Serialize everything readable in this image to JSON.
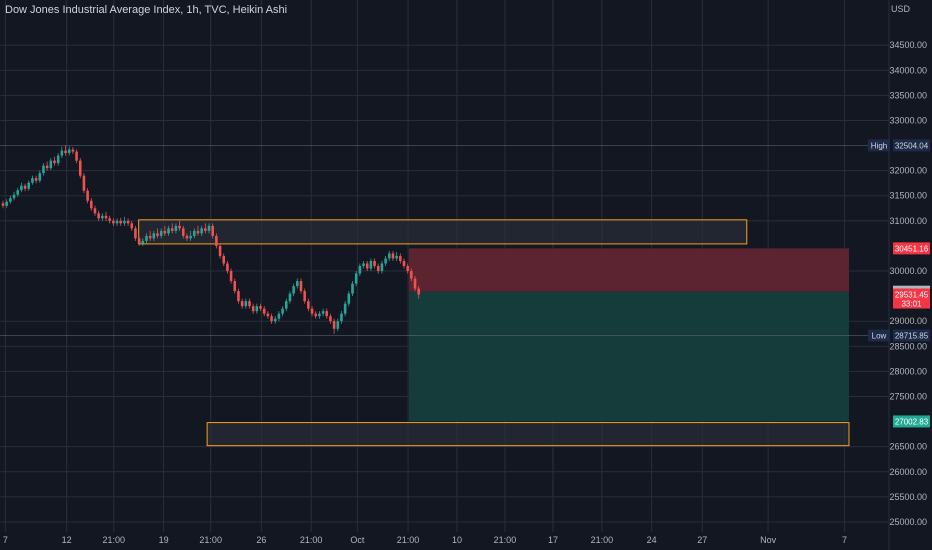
{
  "header": {
    "title": "Dow Jones Industrial Average Index, 1h, TVC, Heikin Ashi",
    "currency": "USD"
  },
  "chart_data": {
    "type": "candlestick",
    "title": "Dow Jones Industrial Average Index, 1h, TVC, Heikin Ashi",
    "ylim": [
      24800,
      35400
    ],
    "y_ticks": [
      {
        "value": 34500,
        "label": "34500.00"
      },
      {
        "value": 34000,
        "label": "34000.00"
      },
      {
        "value": 33500,
        "label": "33500.00"
      },
      {
        "value": 33000,
        "label": "33000.00"
      },
      {
        "value": 32000,
        "label": "32000.00"
      },
      {
        "value": 31500,
        "label": "31500.00"
      },
      {
        "value": 31000,
        "label": "31000.00"
      },
      {
        "value": 30000,
        "label": "30000.00"
      },
      {
        "value": 29000,
        "label": "29000.00"
      },
      {
        "value": 28500,
        "label": "28500.00"
      },
      {
        "value": 28000,
        "label": "28000.00"
      },
      {
        "value": 27500,
        "label": "27500.00"
      },
      {
        "value": 26500,
        "label": "26500.00"
      },
      {
        "value": 26000,
        "label": "26000.00"
      },
      {
        "value": 25500,
        "label": "25500.00"
      },
      {
        "value": 25000,
        "label": "25000.00"
      }
    ],
    "x_ticks": [
      {
        "pos": 0.006,
        "label": "7"
      },
      {
        "pos": 0.075,
        "label": "12"
      },
      {
        "pos": 0.128,
        "label": "21:00"
      },
      {
        "pos": 0.184,
        "label": "19"
      },
      {
        "pos": 0.237,
        "label": "21:00"
      },
      {
        "pos": 0.294,
        "label": "26"
      },
      {
        "pos": 0.35,
        "label": "21:00"
      },
      {
        "pos": 0.402,
        "label": "Oct"
      },
      {
        "pos": 0.459,
        "label": "21:00"
      },
      {
        "pos": 0.514,
        "label": "10"
      },
      {
        "pos": 0.568,
        "label": "21:00"
      },
      {
        "pos": 0.622,
        "label": "17"
      },
      {
        "pos": 0.677,
        "label": "21:00"
      },
      {
        "pos": 0.733,
        "label": "24"
      },
      {
        "pos": 0.79,
        "label": "27"
      },
      {
        "pos": 0.864,
        "label": "Nov"
      },
      {
        "pos": 0.95,
        "label": "7"
      }
    ],
    "candles": [
      [
        31350,
        31300,
        31400,
        31250
      ],
      [
        31300,
        31380,
        31430,
        31260
      ],
      [
        31380,
        31450,
        31500,
        31340
      ],
      [
        31450,
        31520,
        31580,
        31410
      ],
      [
        31520,
        31610,
        31660,
        31480
      ],
      [
        31610,
        31700,
        31760,
        31570
      ],
      [
        31700,
        31640,
        31740,
        31590
      ],
      [
        31640,
        31760,
        31800,
        31600
      ],
      [
        31760,
        31850,
        31900,
        31720
      ],
      [
        31850,
        31800,
        31900,
        31750
      ],
      [
        31800,
        31950,
        32000,
        31760
      ],
      [
        31950,
        32100,
        32150,
        31900
      ],
      [
        32100,
        32050,
        32180,
        32000
      ],
      [
        32050,
        32200,
        32250,
        32010
      ],
      [
        32200,
        32150,
        32280,
        32100
      ],
      [
        32150,
        32300,
        32350,
        32100
      ],
      [
        32300,
        32400,
        32480,
        32250
      ],
      [
        32400,
        32350,
        32500,
        32300
      ],
      [
        32350,
        32420,
        32480,
        32300
      ],
      [
        32420,
        32380,
        32470,
        32330
      ],
      [
        32380,
        32200,
        32420,
        32150
      ],
      [
        32200,
        31900,
        32250,
        31850
      ],
      [
        31900,
        31600,
        31950,
        31550
      ],
      [
        31600,
        31400,
        31650,
        31350
      ],
      [
        31400,
        31250,
        31450,
        31200
      ],
      [
        31250,
        31150,
        31300,
        31100
      ],
      [
        31150,
        31050,
        31200,
        31000
      ],
      [
        31050,
        31100,
        31150,
        31000
      ],
      [
        31100,
        31050,
        31180,
        31000
      ],
      [
        31050,
        31000,
        31100,
        30950
      ],
      [
        31000,
        30950,
        31050,
        30900
      ],
      [
        30950,
        31000,
        31050,
        30900
      ],
      [
        31000,
        30950,
        31060,
        30900
      ],
      [
        30950,
        31000,
        31080,
        30900
      ],
      [
        31000,
        30950,
        31050,
        30900
      ],
      [
        30950,
        30850,
        31000,
        30800
      ],
      [
        30850,
        30650,
        30900,
        30600
      ],
      [
        30650,
        30550,
        30700,
        30500
      ],
      [
        30550,
        30600,
        30650,
        30500
      ],
      [
        30600,
        30700,
        30750,
        30550
      ],
      [
        30700,
        30650,
        30800,
        30600
      ],
      [
        30650,
        30750,
        30800,
        30600
      ],
      [
        30750,
        30700,
        30850,
        30650
      ],
      [
        30700,
        30800,
        30850,
        30650
      ],
      [
        30800,
        30750,
        30900,
        30700
      ],
      [
        30750,
        30850,
        30900,
        30700
      ],
      [
        30850,
        30800,
        30950,
        30750
      ],
      [
        30800,
        30900,
        30950,
        30750
      ],
      [
        30900,
        30850,
        31000,
        30800
      ],
      [
        30850,
        30700,
        30900,
        30650
      ],
      [
        30700,
        30650,
        30750,
        30600
      ],
      [
        30650,
        30700,
        30800,
        30600
      ],
      [
        30700,
        30800,
        30850,
        30650
      ],
      [
        30800,
        30750,
        30900,
        30700
      ],
      [
        30750,
        30850,
        30900,
        30700
      ],
      [
        30850,
        30800,
        30950,
        30750
      ],
      [
        30800,
        30900,
        30950,
        30750
      ],
      [
        30900,
        30700,
        30950,
        30650
      ],
      [
        30700,
        30500,
        30750,
        30450
      ],
      [
        30500,
        30300,
        30550,
        30250
      ],
      [
        30300,
        30150,
        30350,
        30100
      ],
      [
        30150,
        30000,
        30200,
        29950
      ],
      [
        30000,
        29800,
        30050,
        29750
      ],
      [
        29800,
        29600,
        29850,
        29550
      ],
      [
        29600,
        29400,
        29650,
        29350
      ],
      [
        29400,
        29300,
        29450,
        29250
      ],
      [
        29300,
        29400,
        29450,
        29250
      ],
      [
        29400,
        29300,
        29450,
        29250
      ],
      [
        29300,
        29200,
        29350,
        29150
      ],
      [
        29200,
        29300,
        29350,
        29150
      ],
      [
        29300,
        29250,
        29350,
        29200
      ],
      [
        29250,
        29150,
        29300,
        29100
      ],
      [
        29150,
        29100,
        29200,
        29050
      ],
      [
        29100,
        29000,
        29150,
        28950
      ],
      [
        29000,
        29050,
        29100,
        28950
      ],
      [
        29050,
        29150,
        29200,
        29000
      ],
      [
        29150,
        29250,
        29300,
        29100
      ],
      [
        29250,
        29400,
        29450,
        29200
      ],
      [
        29400,
        29550,
        29600,
        29350
      ],
      [
        29550,
        29700,
        29750,
        29500
      ],
      [
        29700,
        29800,
        29850,
        29650
      ],
      [
        29800,
        29600,
        29850,
        29550
      ],
      [
        29600,
        29400,
        29650,
        29350
      ],
      [
        29400,
        29250,
        29450,
        29200
      ],
      [
        29250,
        29150,
        29300,
        29100
      ],
      [
        29150,
        29100,
        29200,
        29050
      ],
      [
        29100,
        29150,
        29200,
        29050
      ],
      [
        29150,
        29200,
        29250,
        29100
      ],
      [
        29200,
        29100,
        29250,
        29050
      ],
      [
        29100,
        29000,
        29150,
        28950
      ],
      [
        29000,
        28850,
        29050,
        28750
      ],
      [
        28850,
        29000,
        29050,
        28800
      ],
      [
        29000,
        29150,
        29200,
        28950
      ],
      [
        29150,
        29350,
        29400,
        29100
      ],
      [
        29350,
        29550,
        29600,
        29300
      ],
      [
        29550,
        29750,
        29800,
        29500
      ],
      [
        29750,
        29950,
        30000,
        29700
      ],
      [
        29950,
        30100,
        30150,
        29900
      ],
      [
        30100,
        30150,
        30200,
        30050
      ],
      [
        30150,
        30050,
        30200,
        30000
      ],
      [
        30050,
        30200,
        30250,
        30000
      ],
      [
        30200,
        30100,
        30250,
        30050
      ],
      [
        30100,
        30000,
        30150,
        29950
      ],
      [
        30000,
        30150,
        30200,
        29950
      ],
      [
        30150,
        30250,
        30300,
        30100
      ],
      [
        30250,
        30350,
        30400,
        30200
      ],
      [
        30350,
        30250,
        30400,
        30200
      ],
      [
        30250,
        30300,
        30380,
        30200
      ],
      [
        30300,
        30200,
        30350,
        30150
      ],
      [
        30200,
        30100,
        30250,
        30050
      ],
      [
        30100,
        30000,
        30150,
        29950
      ],
      [
        30000,
        29850,
        30050,
        29800
      ],
      [
        29850,
        29650,
        29900,
        29600
      ],
      [
        29650,
        29531.45,
        29700,
        29450
      ]
    ],
    "reference_lines": [
      {
        "label": "High",
        "value": 32504.04,
        "value_label": "32504.04"
      },
      {
        "label": "Low",
        "value": 28715.85,
        "value_label": "28715.85"
      }
    ],
    "zones": [
      {
        "kind": "box",
        "x_start": 0.156,
        "x_end": 0.84,
        "y_top": 31020,
        "y_bottom": 30540
      },
      {
        "kind": "box",
        "x_start": 0.233,
        "x_end": 0.955,
        "y_top": 26980,
        "y_bottom": 26520
      },
      {
        "kind": "stop",
        "x_start": 0.46,
        "x_end": 0.955,
        "y_top": 30451.16,
        "y_bottom": 29588.69
      },
      {
        "kind": "target",
        "x_start": 0.46,
        "x_end": 0.955,
        "y_top": 29588.69,
        "y_bottom": 27002.83
      }
    ],
    "price_labels": [
      {
        "kind": "stop",
        "value": 30451.16,
        "label": "30451.16"
      },
      {
        "kind": "entry",
        "value": 29588.69,
        "label": "29588.69"
      },
      {
        "kind": "last",
        "value": 29531.45,
        "label": "29531.45",
        "sub": "33:01"
      },
      {
        "kind": "target",
        "value": 27002.83,
        "label": "27002.83"
      }
    ],
    "colors": {
      "background": "#131722",
      "up": "#26a69a",
      "down": "#ef5350",
      "grid": "#2a2e39",
      "box_border": "#f7a21b",
      "stop_zone": "#5b2430",
      "target_zone": "#153b3a",
      "stop_badge": "#f23645",
      "target_badge": "#22ab94",
      "entry_badge": "#b2b5be",
      "badge_dark": "#1e2a4a"
    }
  }
}
